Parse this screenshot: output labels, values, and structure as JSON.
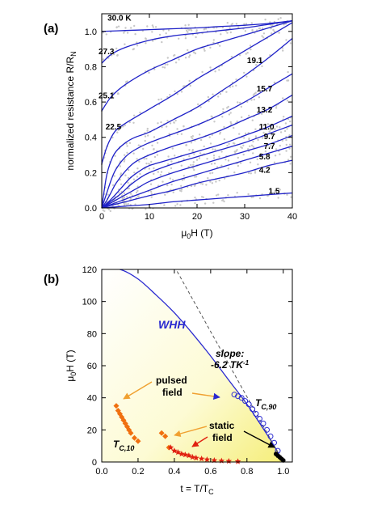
{
  "chart_data": [
    {
      "type": "line",
      "panel_label": "(a)",
      "xlabel": "μ0H (T)",
      "ylabel": "normalized resistance R/RN",
      "xlim": [
        0,
        40
      ],
      "ylim": [
        0,
        1.1
      ],
      "xticks": [
        0,
        10,
        20,
        30,
        40
      ],
      "yticks": [
        0.0,
        0.2,
        0.4,
        0.6,
        0.8,
        1.0
      ],
      "xtick_labels": [
        "0",
        "10",
        "20",
        "30",
        "40"
      ],
      "ytick_labels": [
        "0.0",
        "0.2",
        "0.4",
        "0.6",
        "0.8",
        "1.0"
      ],
      "grid": false,
      "series": [
        {
          "name": "30.0 K",
          "label_xy": [
            1.2,
            1.06
          ],
          "x": [
            0,
            5,
            10,
            15,
            20,
            25,
            30,
            35,
            40
          ],
          "y": [
            1.0,
            1.005,
            1.01,
            1.015,
            1.02,
            1.028,
            1.035,
            1.045,
            1.06
          ]
        },
        {
          "name": "27.3",
          "label_xy": [
            -0.5,
            0.87
          ],
          "x": [
            0,
            2,
            5,
            10,
            15,
            20,
            25,
            30,
            35,
            40
          ],
          "y": [
            0.82,
            0.87,
            0.91,
            0.95,
            0.975,
            0.99,
            1.005,
            1.02,
            1.04,
            1.06
          ]
        },
        {
          "name": "25.1",
          "label_xy": [
            -0.5,
            0.62
          ],
          "x": [
            0,
            2,
            5,
            10,
            15,
            20,
            25,
            30,
            35,
            40
          ],
          "y": [
            0.55,
            0.63,
            0.7,
            0.78,
            0.84,
            0.9,
            0.94,
            0.98,
            1.02,
            1.06
          ]
        },
        {
          "name": "22.5",
          "label_xy": [
            0.8,
            0.445
          ],
          "x": [
            0,
            1,
            2,
            3,
            5,
            10,
            15,
            20,
            25,
            30,
            35,
            40
          ],
          "y": [
            0.25,
            0.34,
            0.4,
            0.44,
            0.48,
            0.56,
            0.64,
            0.73,
            0.81,
            0.89,
            0.97,
            1.05
          ]
        },
        {
          "name": "19.1",
          "label_xy": [
            30.5,
            0.82
          ],
          "x": [
            0,
            1,
            2,
            3,
            5,
            7,
            10,
            15,
            20,
            25,
            30,
            35,
            40
          ],
          "y": [
            0.0,
            0.18,
            0.27,
            0.32,
            0.37,
            0.4,
            0.43,
            0.5,
            0.57,
            0.66,
            0.75,
            0.85,
            0.96
          ]
        },
        {
          "name": "15.7",
          "label_xy": [
            32.5,
            0.66
          ],
          "x": [
            0,
            1,
            2,
            3,
            5,
            7,
            10,
            15,
            20,
            25,
            30,
            35,
            40
          ],
          "y": [
            0.0,
            0.08,
            0.16,
            0.22,
            0.29,
            0.33,
            0.37,
            0.42,
            0.47,
            0.53,
            0.6,
            0.68,
            0.76
          ]
        },
        {
          "name": "13.2",
          "label_xy": [
            32.5,
            0.54
          ],
          "x": [
            0,
            1,
            2,
            3,
            5,
            7,
            10,
            15,
            20,
            25,
            30,
            35,
            40
          ],
          "y": [
            0.0,
            0.04,
            0.09,
            0.14,
            0.21,
            0.26,
            0.3,
            0.35,
            0.39,
            0.44,
            0.5,
            0.56,
            0.64
          ]
        },
        {
          "name": "11.0",
          "label_xy": [
            33.0,
            0.445
          ],
          "x": [
            0,
            2,
            4,
            6,
            8,
            10,
            15,
            20,
            25,
            30,
            35,
            40
          ],
          "y": [
            0.0,
            0.05,
            0.11,
            0.17,
            0.21,
            0.24,
            0.28,
            0.32,
            0.36,
            0.41,
            0.46,
            0.52
          ]
        },
        {
          "name": "9.7",
          "label_xy": [
            34.0,
            0.39
          ],
          "x": [
            0,
            2,
            4,
            6,
            8,
            10,
            15,
            20,
            25,
            30,
            35,
            40
          ],
          "y": [
            0.0,
            0.04,
            0.08,
            0.13,
            0.17,
            0.2,
            0.25,
            0.29,
            0.33,
            0.37,
            0.42,
            0.47
          ]
        },
        {
          "name": "7.7",
          "label_xy": [
            34.0,
            0.335
          ],
          "x": [
            0,
            2,
            4,
            6,
            8,
            10,
            15,
            20,
            25,
            30,
            35,
            40
          ],
          "y": [
            0.0,
            0.03,
            0.06,
            0.09,
            0.12,
            0.15,
            0.2,
            0.24,
            0.28,
            0.32,
            0.36,
            0.41
          ]
        },
        {
          "name": "5.8",
          "label_xy": [
            33.0,
            0.275
          ],
          "x": [
            0,
            2,
            4,
            6,
            8,
            10,
            15,
            20,
            25,
            30,
            35,
            40
          ],
          "y": [
            0.0,
            0.02,
            0.04,
            0.06,
            0.08,
            0.1,
            0.15,
            0.19,
            0.23,
            0.27,
            0.31,
            0.35
          ]
        },
        {
          "name": "4.2",
          "label_xy": [
            33.0,
            0.2
          ],
          "x": [
            0,
            2,
            5,
            10,
            15,
            20,
            25,
            30,
            35,
            40
          ],
          "y": [
            0.0,
            0.015,
            0.035,
            0.07,
            0.1,
            0.14,
            0.17,
            0.2,
            0.24,
            0.27
          ]
        },
        {
          "name": "1.5",
          "label_xy": [
            35.0,
            0.08
          ],
          "x": [
            0,
            5,
            10,
            15,
            20,
            25,
            30,
            35,
            40
          ],
          "y": [
            0.0,
            0.01,
            0.02,
            0.035,
            0.045,
            0.055,
            0.065,
            0.075,
            0.085
          ]
        }
      ]
    },
    {
      "type": "scatter",
      "panel_label": "(b)",
      "xlabel": "t = T/TC",
      "ylabel": "μ0H (T)",
      "xlim": [
        0,
        1.05
      ],
      "ylim": [
        0,
        120
      ],
      "xticks": [
        0.0,
        0.2,
        0.4,
        0.6,
        0.8,
        1.0
      ],
      "yticks": [
        0,
        20,
        40,
        60,
        80,
        100,
        120
      ],
      "xtick_labels": [
        "0.0",
        "0.2",
        "0.4",
        "0.6",
        "0.8",
        "1.0"
      ],
      "ytick_labels": [
        "0",
        "20",
        "40",
        "60",
        "80",
        "100",
        "120"
      ],
      "grid": false,
      "whh_label": "WHH",
      "slope_label": "slope:",
      "slope_value": "-6.2 TK",
      "slope_exp": "-1",
      "pulsed_label_1": "pulsed",
      "pulsed_label_2": "field",
      "static_label_1": "static",
      "static_label_2": "field",
      "tc90_label": "T",
      "tc90_sub": "C,90",
      "tc10_label": "T",
      "tc10_sub": "C,10",
      "series": [
        {
          "name": "WHH",
          "kind": "line",
          "color": "#2a2ad0",
          "x": [
            0.0,
            0.1,
            0.2,
            0.3,
            0.4,
            0.5,
            0.6,
            0.7,
            0.8,
            0.9,
            0.95,
            1.0
          ],
          "y": [
            124,
            121,
            114,
            104,
            93,
            80,
            66,
            51,
            36,
            19,
            10,
            0
          ]
        },
        {
          "name": "slope",
          "kind": "dashed",
          "color": "#555555",
          "x": [
            0.37,
            1.0
          ],
          "y": [
            128,
            0
          ]
        },
        {
          "name": "TC,90 pulsed",
          "kind": "open-circle",
          "color": "#2a2ad0",
          "x": [
            0.73,
            0.75,
            0.77,
            0.79,
            0.81,
            0.83,
            0.85,
            0.87,
            0.89,
            0.91,
            0.93,
            0.95,
            0.97
          ],
          "y": [
            42,
            41,
            40,
            38,
            36,
            33,
            30,
            27,
            24,
            20,
            16,
            12,
            7
          ]
        },
        {
          "name": "TC,90 static",
          "kind": "filled-circle",
          "color": "#000000",
          "x": [
            0.96,
            0.97,
            0.98,
            0.99,
            1.0
          ],
          "y": [
            5,
            4,
            3,
            2,
            1
          ]
        },
        {
          "name": "TC,10 pulsed",
          "kind": "diamond",
          "color": "#f07010",
          "x": [
            0.08,
            0.09,
            0.1,
            0.11,
            0.12,
            0.13,
            0.14,
            0.15,
            0.16,
            0.18,
            0.2,
            0.33,
            0.35,
            0.37
          ],
          "y": [
            35,
            32,
            30,
            28,
            26,
            24,
            22,
            20,
            18,
            15,
            13,
            18,
            16,
            9
          ]
        },
        {
          "name": "TC,10 static",
          "kind": "star",
          "color": "#e02010",
          "x": [
            0.38,
            0.4,
            0.42,
            0.44,
            0.46,
            0.48,
            0.5,
            0.52,
            0.55,
            0.58,
            0.62,
            0.66,
            0.7,
            0.75
          ],
          "y": [
            9,
            7,
            6,
            5,
            4.5,
            4,
            3,
            2.5,
            2,
            1.5,
            1,
            0.7,
            0.5,
            0.3
          ]
        }
      ]
    }
  ]
}
